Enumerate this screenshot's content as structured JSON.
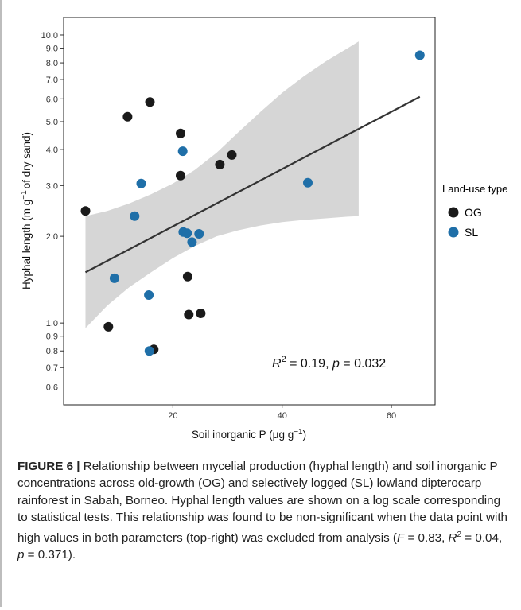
{
  "chart_data": {
    "type": "scatter",
    "xlabel_main": "Soil inorganic P (μg g",
    "xlabel_sup": "−1",
    "xlabel_end": ")",
    "ylabel_main": "Hyphal length (m g",
    "ylabel_sup": "−1",
    "ylabel_end": "of dry sand)",
    "xlim": [
      0,
      68
    ],
    "ylim_log": [
      0.52,
      11.5
    ],
    "y_scale": "log",
    "x_ticks": [
      20,
      40,
      60
    ],
    "x_tick_labels": [
      "20",
      "40",
      "60"
    ],
    "y_ticks": [
      0.6,
      0.7,
      0.8,
      0.9,
      1.0,
      2.0,
      3.0,
      4.0,
      5.0,
      6.0,
      7.0,
      8.0,
      9.0,
      10.0
    ],
    "y_tick_labels": [
      "0.6",
      "0.7",
      "0.8",
      "0.9",
      "1.0",
      "2.0",
      "3.0",
      "4.0",
      "5.0",
      "6.0",
      "7.0",
      "8.0",
      "9.0",
      "10.0"
    ],
    "grid": false,
    "legend_position": "right",
    "legend_title": "Land-use type",
    "series": [
      {
        "name": "OG",
        "color": "#1a1a1a",
        "points": [
          [
            4.0,
            2.45
          ],
          [
            8.2,
            0.97
          ],
          [
            11.7,
            5.2
          ],
          [
            15.8,
            5.85
          ],
          [
            16.5,
            0.81
          ],
          [
            21.4,
            4.55
          ],
          [
            21.4,
            3.25
          ],
          [
            22.7,
            1.45
          ],
          [
            22.9,
            1.07
          ],
          [
            25.1,
            1.08
          ],
          [
            28.6,
            3.55
          ],
          [
            30.8,
            3.83
          ]
        ]
      },
      {
        "name": "SL",
        "color": "#1f6fa8",
        "points": [
          [
            9.3,
            1.43
          ],
          [
            13.0,
            2.35
          ],
          [
            14.2,
            3.05
          ],
          [
            15.6,
            1.25
          ],
          [
            15.7,
            0.8
          ],
          [
            21.8,
            3.95
          ],
          [
            21.9,
            2.07
          ],
          [
            22.6,
            2.05
          ],
          [
            23.5,
            1.91
          ],
          [
            24.8,
            2.04
          ],
          [
            44.7,
            3.07
          ],
          [
            65.2,
            8.5
          ]
        ]
      }
    ],
    "regression": {
      "x": [
        4.0,
        65.2
      ],
      "y": [
        1.5,
        6.1
      ],
      "color": "#333333",
      "ci_color": "#d6d6d6",
      "ci_x": [
        4.0,
        8.0,
        12.0,
        16.0,
        20.0,
        24.0,
        28.0,
        32.0,
        36.0,
        40.0,
        44.0,
        48.0,
        52.0,
        54.0
      ],
      "ci_upper": [
        2.35,
        2.45,
        2.6,
        2.8,
        3.05,
        3.4,
        3.9,
        4.6,
        5.4,
        6.3,
        7.2,
        8.1,
        9.0,
        9.5
      ],
      "ci_lower": [
        0.96,
        1.15,
        1.33,
        1.5,
        1.68,
        1.85,
        2.0,
        2.1,
        2.18,
        2.24,
        2.28,
        2.31,
        2.34,
        2.35
      ]
    },
    "annotation": {
      "r_label": "R",
      "r_sup": "2",
      "r_rest": " = 0.19, ",
      "p_label": "p",
      "p_rest": " = 0.032"
    }
  },
  "caption": {
    "lead": "FIGURE 6 |",
    "text": " Relationship between mycelial production (hyphal length) and soil inorganic P concentrations across old-growth (OG) and selectively logged (SL) lowland dipterocarp rainforest in Sabah, Borneo. Hyphal length values are shown on a log scale corresponding to statistical tests. This relationship was found to be non-significant when the data point with high values in both parameters (top-right) was excluded from analysis (",
    "f_label": "F",
    "f_rest": " = 0.83, ",
    "r_label": "R",
    "r_sup": "2",
    "r_rest": " = 0.04, ",
    "p_label": "p",
    "p_rest": " = 0.371)."
  }
}
